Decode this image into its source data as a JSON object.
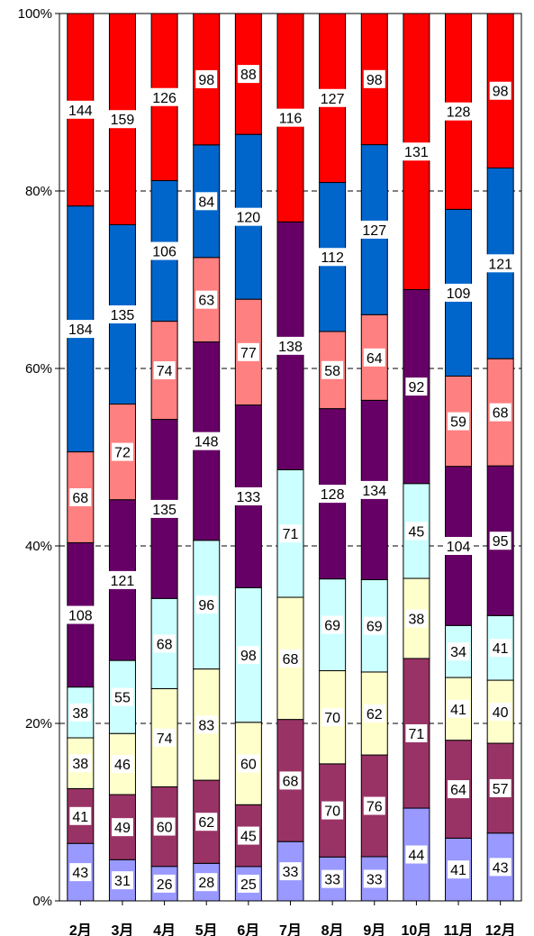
{
  "chart_data": {
    "type": "bar",
    "stacked": "percent",
    "categories": [
      "2月",
      "3月",
      "4月",
      "5月",
      "6月",
      "7月",
      "8月",
      "9月",
      "10月",
      "11月",
      "12月"
    ],
    "ylim": [
      0,
      100
    ],
    "yticks": [
      "0%",
      "20%",
      "40%",
      "60%",
      "80%",
      "100%"
    ],
    "grid": true,
    "series": [
      {
        "color": "#9999ff",
        "values": [
          43,
          31,
          26,
          28,
          25,
          33,
          33,
          33,
          44,
          41,
          43
        ]
      },
      {
        "color": "#993366",
        "values": [
          41,
          49,
          60,
          62,
          45,
          68,
          70,
          76,
          71,
          64,
          57
        ]
      },
      {
        "color": "#ffffcc",
        "values": [
          38,
          46,
          74,
          83,
          60,
          68,
          70,
          62,
          38,
          41,
          40
        ]
      },
      {
        "color": "#ccffff",
        "values": [
          38,
          55,
          68,
          96,
          98,
          71,
          69,
          69,
          45,
          34,
          41
        ]
      },
      {
        "color": "#660066",
        "values": [
          108,
          121,
          135,
          148,
          133,
          138,
          128,
          134,
          92,
          104,
          95
        ]
      },
      {
        "color": "#ff8080",
        "values": [
          68,
          72,
          74,
          63,
          77,
          0,
          58,
          64,
          0,
          59,
          68
        ]
      },
      {
        "color": "#0066cc",
        "values": [
          184,
          135,
          106,
          84,
          120,
          0,
          112,
          127,
          0,
          109,
          121
        ]
      },
      {
        "color": "#ff0000",
        "values": [
          144,
          159,
          126,
          98,
          88,
          116,
          127,
          98,
          131,
          128,
          98
        ]
      }
    ]
  }
}
